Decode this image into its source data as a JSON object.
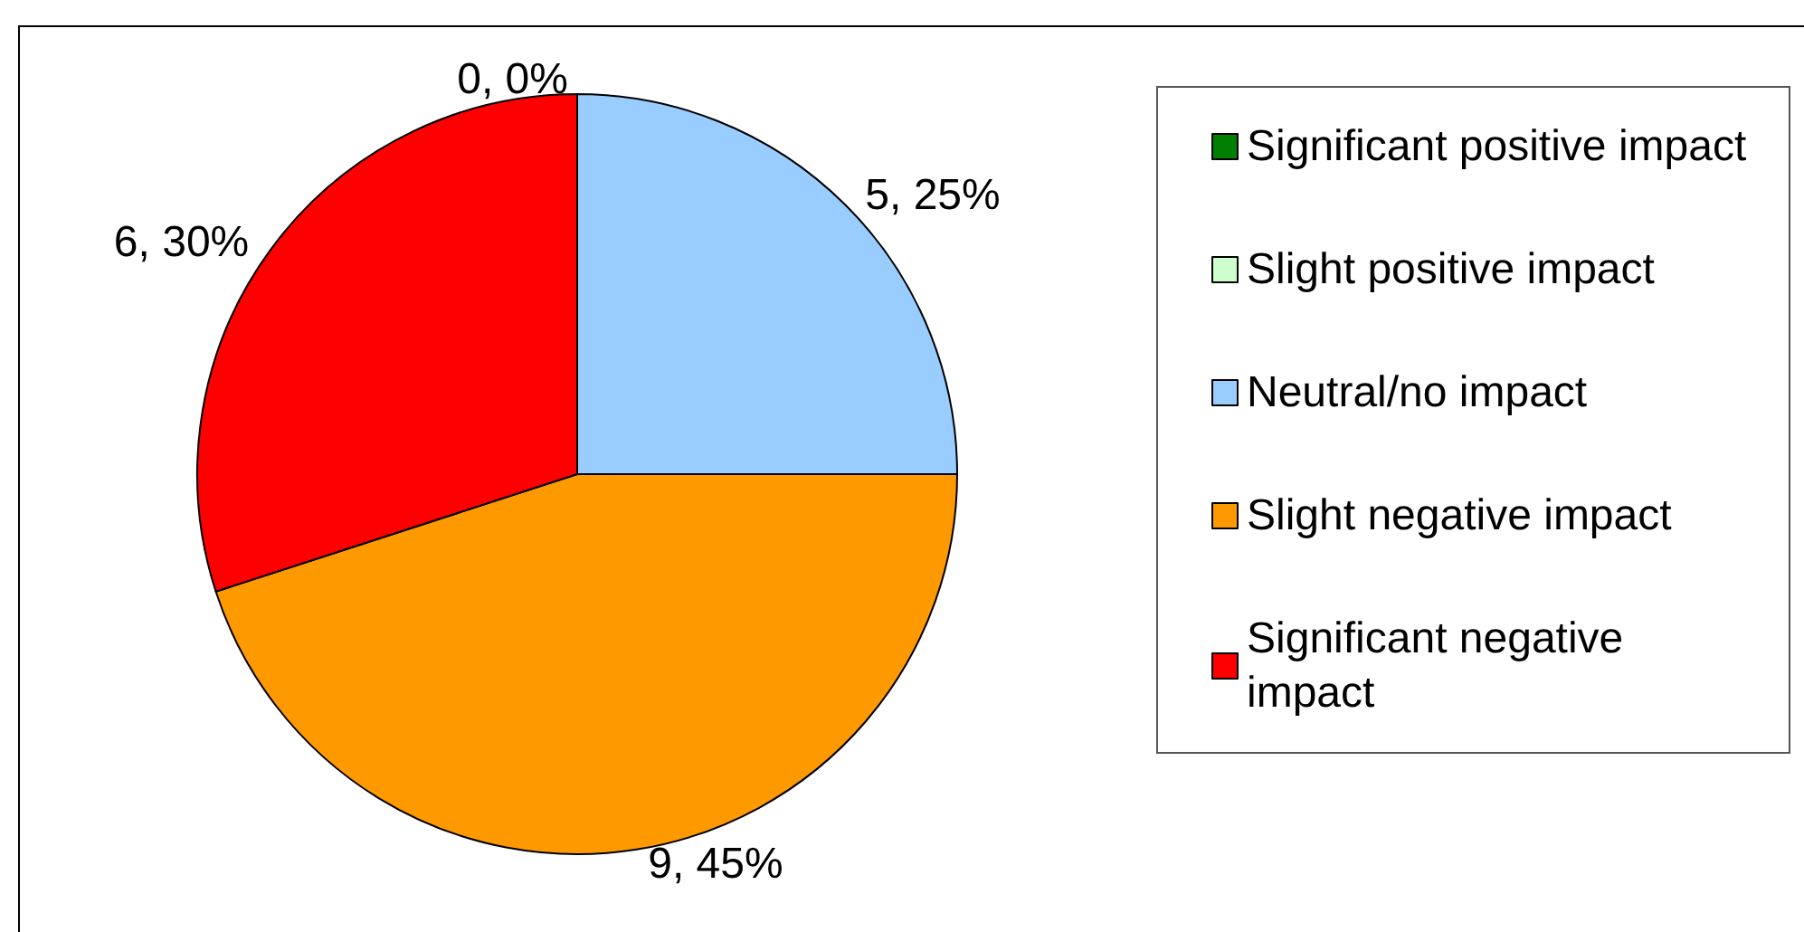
{
  "chart_data": {
    "type": "pie",
    "categories": [
      "Significant positive impact",
      "Slight positive impact",
      "Neutral/no impact",
      "Slight negative impact",
      "Significant negative impact"
    ],
    "values": [
      0,
      0,
      5,
      9,
      6
    ],
    "colors": [
      "#007f00",
      "#ccffcc",
      "#99ccff",
      "#ff9900",
      "#ff0000"
    ],
    "value_labels": [
      "0, 0%",
      null,
      "5, 25%",
      "9, 45%",
      "6, 30%"
    ],
    "legend": "right"
  }
}
